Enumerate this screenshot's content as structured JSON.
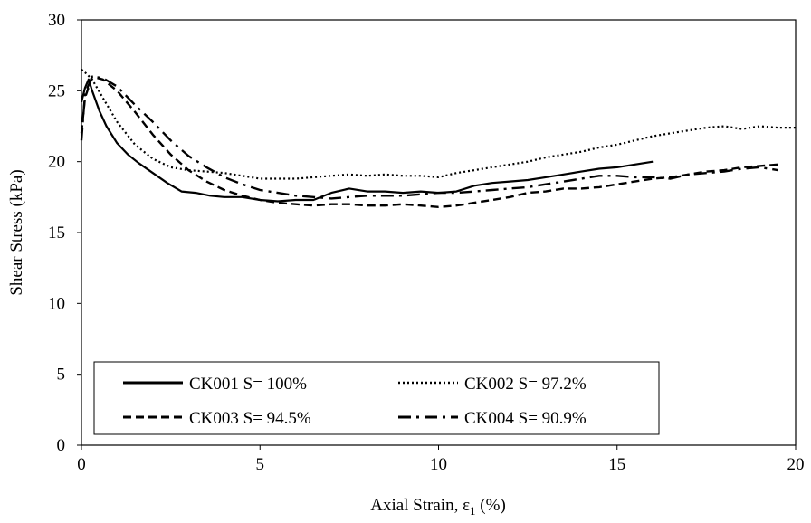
{
  "chart_data": {
    "type": "line",
    "title": "",
    "xlabel": "Axial Strain, ε",
    "xlabel_sub": "1",
    "xlabel_unit": " (%)",
    "ylabel": "Shear Stress (kPa)",
    "xlim": [
      0,
      20
    ],
    "ylim": [
      0,
      30
    ],
    "xticks": [
      0,
      5,
      10,
      15,
      20
    ],
    "yticks": [
      0,
      5,
      10,
      15,
      20,
      25,
      30
    ],
    "grid": false,
    "legend_position": "bottom-left",
    "series": [
      {
        "name": "CK001 S= 100%",
        "style": "solid",
        "color": "#000000",
        "x": [
          0,
          0.1,
          0.2,
          0.3,
          0.5,
          0.7,
          1.0,
          1.3,
          1.6,
          2.0,
          2.4,
          2.8,
          3.2,
          3.6,
          4.0,
          4.5,
          5.0,
          5.5,
          6.0,
          6.5,
          7.0,
          7.5,
          8.0,
          8.5,
          9.0,
          9.5,
          10.0,
          10.5,
          11.0,
          11.5,
          12.0,
          12.5,
          13.0,
          13.5,
          14.0,
          14.5,
          15.0,
          15.5,
          16.0
        ],
        "y": [
          24.2,
          25.2,
          25.8,
          25.0,
          23.6,
          22.5,
          21.3,
          20.5,
          19.9,
          19.2,
          18.5,
          17.9,
          17.8,
          17.6,
          17.5,
          17.5,
          17.3,
          17.2,
          17.3,
          17.3,
          17.8,
          18.1,
          17.9,
          17.9,
          17.8,
          17.9,
          17.8,
          17.9,
          18.3,
          18.5,
          18.6,
          18.7,
          18.9,
          19.1,
          19.3,
          19.5,
          19.6,
          19.8,
          20.0
        ]
      },
      {
        "name": "CK002 S= 97.2%",
        "style": "dotted",
        "color": "#000000",
        "x": [
          0,
          0.1,
          0.3,
          0.6,
          1.0,
          1.5,
          2.0,
          2.5,
          3.0,
          3.5,
          4.0,
          4.5,
          5.0,
          5.5,
          6.0,
          6.5,
          7.0,
          7.5,
          8.0,
          8.5,
          9.0,
          9.5,
          10.0,
          10.5,
          11.0,
          11.5,
          12.0,
          12.5,
          13.0,
          13.5,
          14.0,
          14.5,
          15.0,
          15.5,
          16.0,
          16.5,
          17.0,
          17.5,
          18.0,
          18.5,
          19.0,
          19.5,
          20.0
        ],
        "y": [
          26.5,
          26.3,
          25.8,
          24.5,
          22.8,
          21.2,
          20.2,
          19.6,
          19.4,
          19.3,
          19.2,
          19.0,
          18.8,
          18.8,
          18.8,
          18.9,
          19.0,
          19.1,
          19.0,
          19.1,
          19.0,
          19.0,
          18.9,
          19.2,
          19.4,
          19.6,
          19.8,
          20.0,
          20.3,
          20.5,
          20.7,
          21.0,
          21.2,
          21.5,
          21.8,
          22.0,
          22.2,
          22.4,
          22.5,
          22.3,
          22.5,
          22.4,
          22.4
        ]
      },
      {
        "name": "CK003 S= 94.5%",
        "style": "dashed",
        "color": "#000000",
        "x": [
          0,
          0.1,
          0.3,
          0.6,
          1.0,
          1.5,
          2.0,
          2.5,
          3.0,
          3.5,
          4.0,
          4.5,
          5.0,
          5.5,
          6.0,
          6.5,
          7.0,
          7.5,
          8.0,
          8.5,
          9.0,
          9.5,
          10.0,
          10.5,
          11.0,
          11.5,
          12.0,
          12.5,
          13.0,
          13.5,
          14.0,
          14.5,
          15.0,
          15.5,
          16.0,
          16.5,
          17.0,
          17.5,
          18.0,
          18.5,
          19.0,
          19.5
        ],
        "y": [
          22.0,
          24.5,
          26.0,
          25.8,
          25.0,
          23.5,
          21.9,
          20.5,
          19.4,
          18.6,
          18.0,
          17.6,
          17.3,
          17.1,
          17.0,
          16.9,
          17.0,
          17.0,
          16.9,
          16.9,
          17.0,
          16.9,
          16.8,
          16.9,
          17.1,
          17.3,
          17.5,
          17.8,
          17.9,
          18.1,
          18.1,
          18.2,
          18.4,
          18.6,
          18.8,
          18.9,
          19.1,
          19.3,
          19.4,
          19.6,
          19.7,
          19.8
        ]
      },
      {
        "name": "CK004 S= 90.9%",
        "style": "dashdot",
        "color": "#000000",
        "x": [
          0,
          0.1,
          0.3,
          0.6,
          1.0,
          1.5,
          2.0,
          2.5,
          3.0,
          3.5,
          4.0,
          4.5,
          5.0,
          5.5,
          6.0,
          6.5,
          7.0,
          7.5,
          8.0,
          8.5,
          9.0,
          9.5,
          10.0,
          10.5,
          11.0,
          11.5,
          12.0,
          12.5,
          13.0,
          13.5,
          14.0,
          14.5,
          15.0,
          15.5,
          16.0,
          16.5,
          17.0,
          17.5,
          18.0,
          18.5,
          19.0,
          19.5
        ],
        "y": [
          21.5,
          24.8,
          26.0,
          25.9,
          25.3,
          24.0,
          22.8,
          21.5,
          20.4,
          19.6,
          18.9,
          18.4,
          18.0,
          17.8,
          17.6,
          17.5,
          17.4,
          17.5,
          17.6,
          17.6,
          17.6,
          17.7,
          17.8,
          17.8,
          17.9,
          18.0,
          18.1,
          18.2,
          18.4,
          18.6,
          18.8,
          19.0,
          19.0,
          18.9,
          18.9,
          18.8,
          19.1,
          19.2,
          19.3,
          19.5,
          19.6,
          19.4
        ]
      }
    ]
  }
}
